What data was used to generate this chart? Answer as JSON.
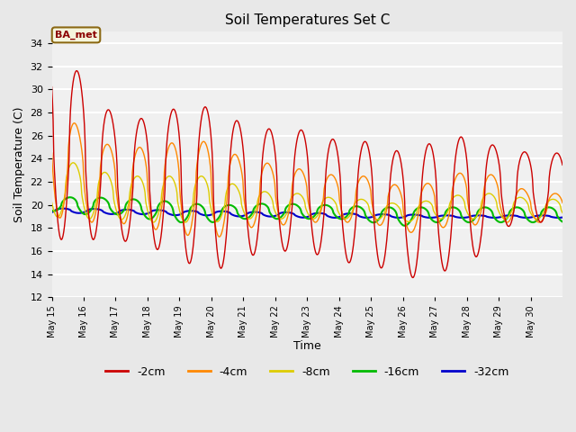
{
  "title": "Soil Temperatures Set C",
  "xlabel": "Time",
  "ylabel": "Soil Temperature (C)",
  "ylim": [
    12,
    35
  ],
  "yticks": [
    12,
    14,
    16,
    18,
    20,
    22,
    24,
    26,
    28,
    30,
    32,
    34
  ],
  "annotation": "BA_met",
  "bg_color": "#f0f0f0",
  "plot_bg": "#f0f0f0",
  "colors": {
    "-2cm": "#cc0000",
    "-4cm": "#ff8800",
    "-8cm": "#ddcc00",
    "-16cm": "#00bb00",
    "-32cm": "#0000cc"
  },
  "legend_order": [
    "-2cm",
    "-4cm",
    "-8cm",
    "-16cm",
    "-32cm"
  ],
  "start_day": 15,
  "end_day": 30
}
